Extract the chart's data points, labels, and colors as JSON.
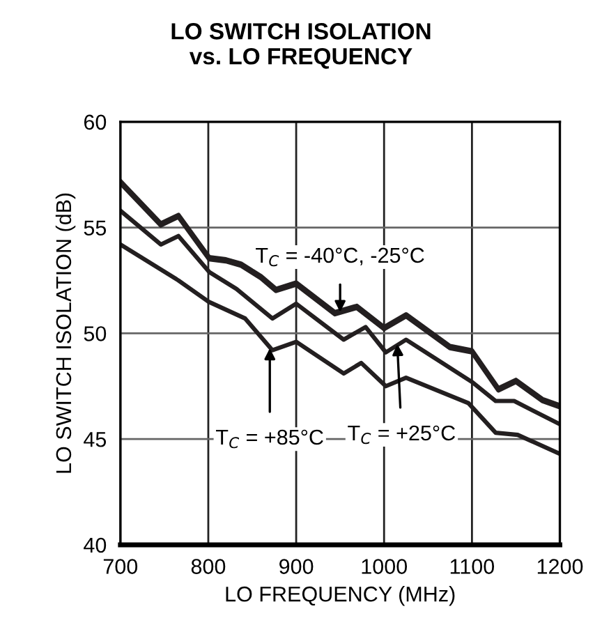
{
  "chart_data": {
    "type": "line",
    "title": "LO SWITCH ISOLATION\nvs. LO FREQUENCY",
    "xlabel": "LO FREQUENCY (MHz)",
    "ylabel": "LO SWITCH ISOLATION (dB)",
    "series": [
      {
        "color": "#231f20",
        "x": [
          700,
          746,
          766,
          801,
          820,
          837,
          860,
          877,
          900,
          944,
          969,
          1000,
          1025,
          1075,
          1100,
          1130,
          1150,
          1180,
          1200
        ],
        "values": [
          57.2,
          55.2,
          55.6,
          53.6,
          53.5,
          53.3,
          52.7,
          52.1,
          52.4,
          51.0,
          51.3,
          50.3,
          50.9,
          49.4,
          49.2,
          47.4,
          47.8,
          46.9,
          46.6
        ]
      },
      {
        "color": "#231f20",
        "x": [
          700,
          746,
          766,
          801,
          820,
          837,
          860,
          877,
          900,
          944,
          969,
          1000,
          1025,
          1075,
          1100,
          1130,
          1150,
          1180,
          1200
        ],
        "values": [
          57.1,
          55.1,
          55.5,
          53.5,
          53.4,
          53.2,
          52.6,
          52.0,
          52.3,
          50.9,
          51.2,
          50.2,
          50.8,
          49.3,
          49.1,
          47.3,
          47.7,
          46.8,
          46.5
        ]
      },
      {
        "color": "#231f20",
        "x": [
          700,
          746,
          766,
          801,
          832,
          873,
          900,
          954,
          979,
          1002,
          1025,
          1100,
          1127,
          1148,
          1200
        ],
        "values": [
          55.8,
          54.2,
          54.6,
          52.9,
          52.1,
          50.7,
          51.4,
          49.7,
          50.3,
          49.1,
          49.7,
          47.7,
          46.8,
          46.8,
          45.7
        ]
      },
      {
        "color": "#231f20",
        "x": [
          700,
          766,
          800,
          842,
          873,
          900,
          954,
          974,
          1002,
          1025,
          1096,
          1127,
          1152,
          1200
        ],
        "values": [
          54.2,
          52.5,
          51.5,
          50.7,
          49.2,
          49.6,
          48.1,
          48.6,
          47.5,
          47.9,
          46.7,
          45.3,
          45.2,
          44.3
        ]
      }
    ],
    "annotations": [
      {
        "text": "T$_{C}$ = -40°C, -25°C",
        "x": 950,
        "y": 51.0
      },
      {
        "text": "T$_{C}$ = +85°C",
        "x": 870,
        "y": 49.3
      },
      {
        "text": "T$_{C}$ = +25°C",
        "x": 1015,
        "y": 49.5
      }
    ],
    "xlim": [
      700,
      1200
    ],
    "xticks": [
      700,
      800,
      900,
      1000,
      1100,
      1200
    ],
    "ylim": [
      40,
      60
    ],
    "yticks": [
      40,
      45,
      50,
      55,
      60
    ],
    "grid": true,
    "marker": "none",
    "line_style": "solid"
  }
}
